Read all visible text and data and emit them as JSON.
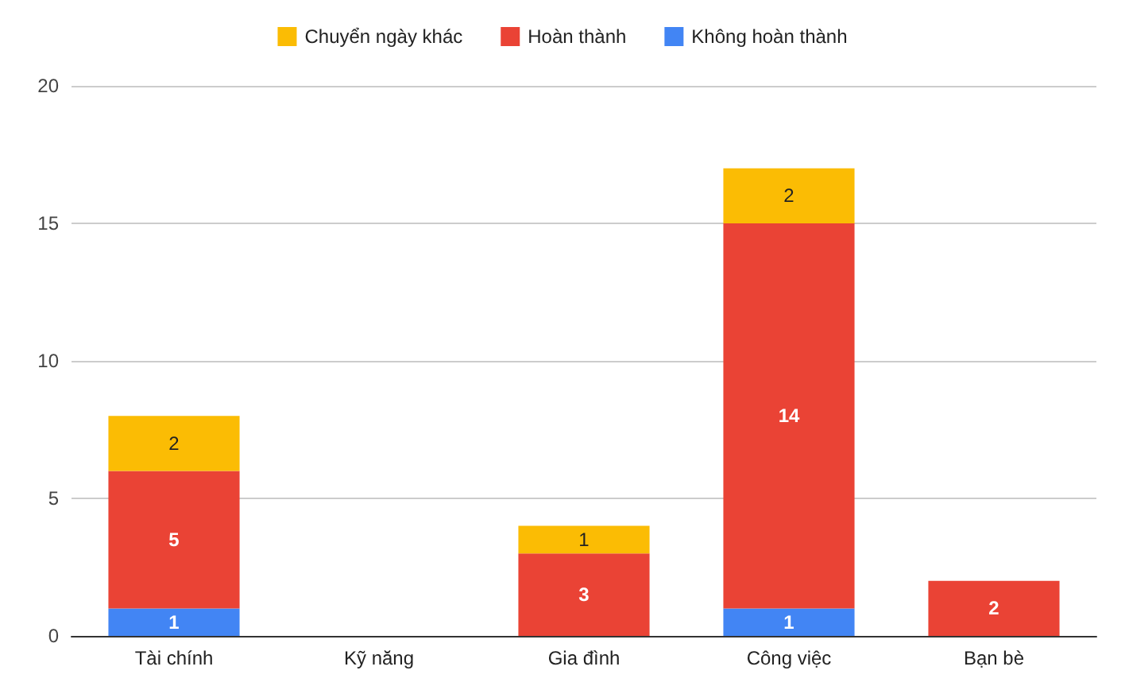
{
  "chart_data": {
    "type": "bar",
    "stacked": true,
    "categories": [
      "Tài chính",
      "Kỹ năng",
      "Gia đình",
      "Công việc",
      "Bạn bè"
    ],
    "series": [
      {
        "name": "Không hoàn thành",
        "color": "#4285f4",
        "values": [
          1,
          null,
          null,
          1,
          null
        ]
      },
      {
        "name": "Hoàn thành",
        "color": "#ea4335",
        "values": [
          5,
          null,
          3,
          14,
          2
        ]
      },
      {
        "name": "Chuyển ngày khác",
        "color": "#fbbc04",
        "values": [
          2,
          null,
          1,
          2,
          null
        ]
      }
    ],
    "ylim": [
      0,
      20
    ],
    "yticks": [
      0,
      5,
      10,
      15,
      20
    ],
    "grid": "y",
    "legend": "top",
    "data_labels": true
  }
}
